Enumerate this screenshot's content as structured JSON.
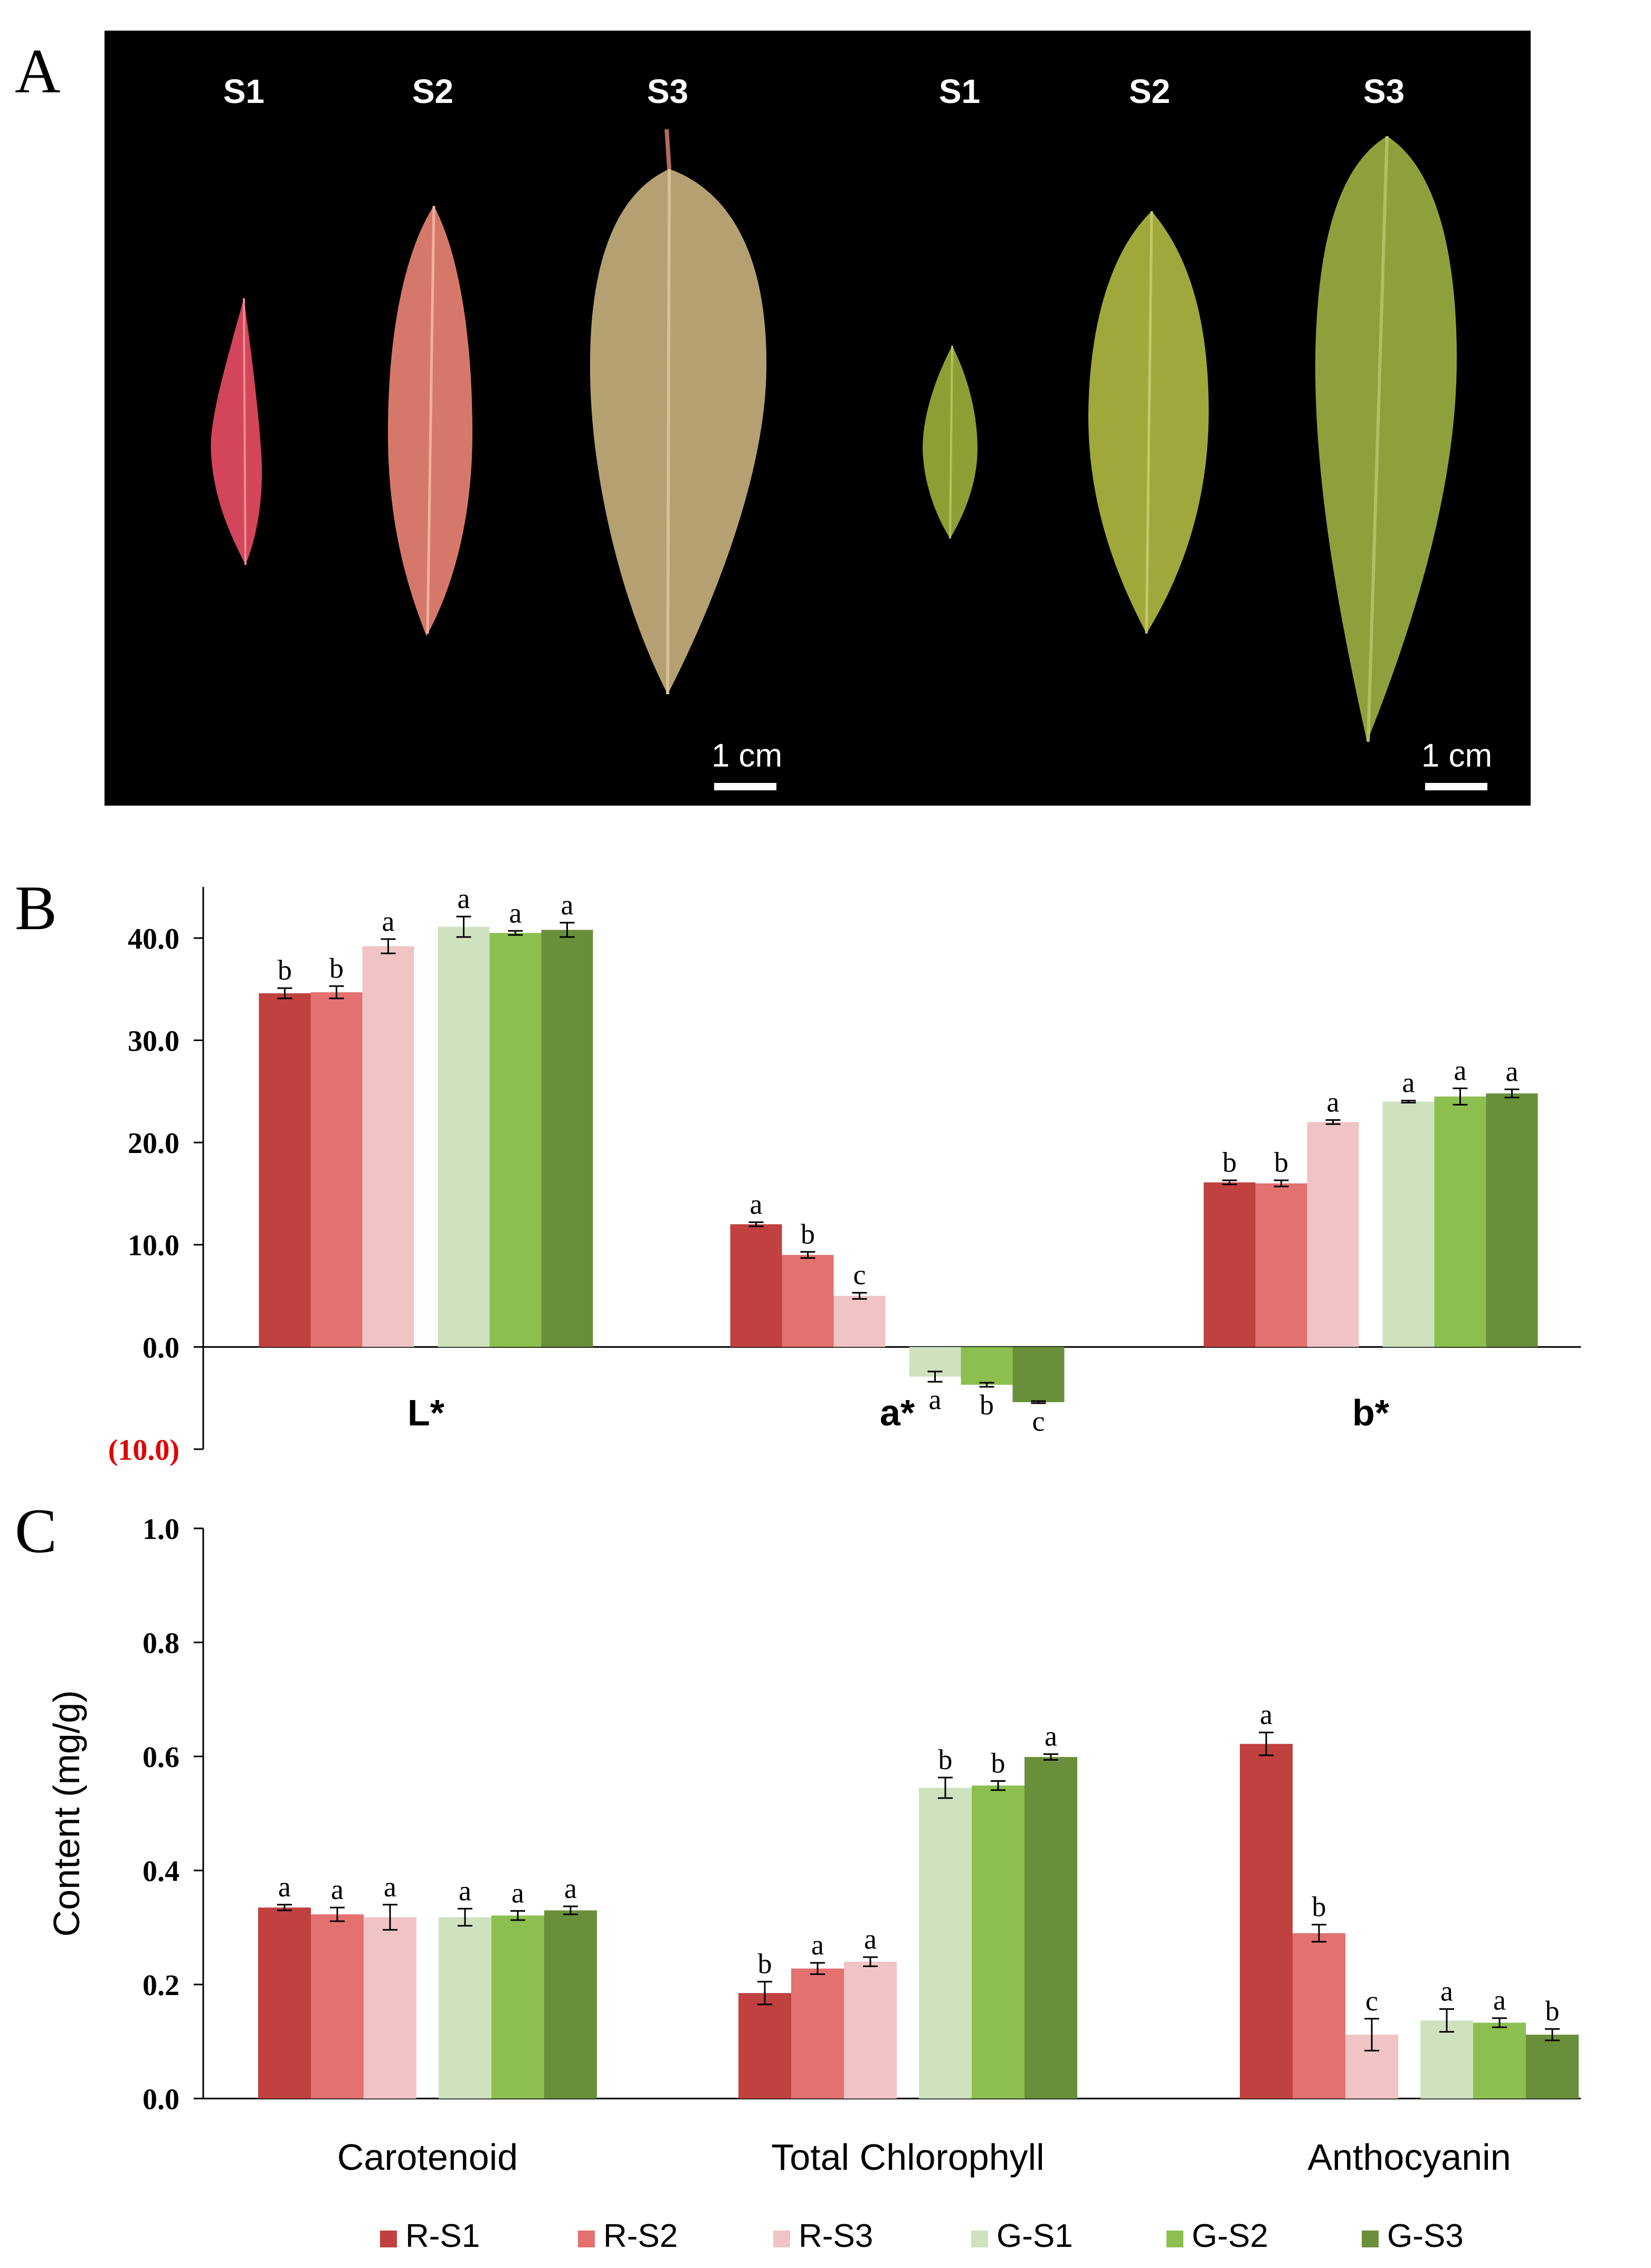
{
  "panels": {
    "A": {
      "label": "A"
    },
    "B": {
      "label": "B"
    },
    "C": {
      "label": "C"
    }
  },
  "photo": {
    "red_stage_labels": [
      "S1",
      "S2",
      "S3"
    ],
    "green_stage_labels": [
      "S1",
      "S2",
      "S3"
    ],
    "scale_bar_text": "1 cm"
  },
  "colors": {
    "R-S1": "#c0413f",
    "R-S2": "#e27170",
    "R-S3": "#f0c4c5",
    "G-S1": "#cfe2c0",
    "G-S2": "#8dbf50",
    "G-S3": "#6a8f3b",
    "photo_bg": "#000000",
    "negative_tick": "#e00000"
  },
  "legend": {
    "items": [
      "R-S1",
      "R-S2",
      "R-S3",
      "G-S1",
      "G-S2",
      "G-S3"
    ]
  },
  "chart_data": [
    {
      "type": "bar",
      "panel": "B",
      "categories": [
        "L*",
        "a*",
        "b*"
      ],
      "series": [
        {
          "name": "R-S1",
          "values": [
            34.6,
            12.0,
            16.1
          ],
          "errors": [
            0.5,
            0.2,
            0.2
          ],
          "letters": [
            "b",
            "a",
            "b"
          ]
        },
        {
          "name": "R-S2",
          "values": [
            34.7,
            9.0,
            16.0
          ],
          "errors": [
            0.6,
            0.3,
            0.3
          ],
          "letters": [
            "b",
            "b",
            "b"
          ]
        },
        {
          "name": "R-S3",
          "values": [
            39.2,
            5.0,
            22.0
          ],
          "errors": [
            0.7,
            0.3,
            0.2
          ],
          "letters": [
            "a",
            "c",
            "a"
          ]
        },
        {
          "name": "G-S1",
          "values": [
            41.1,
            -2.9,
            24.0
          ],
          "errors": [
            1.0,
            0.5,
            0.1
          ],
          "letters": [
            "a",
            "a",
            "a"
          ]
        },
        {
          "name": "G-S2",
          "values": [
            40.5,
            -3.7,
            24.5
          ],
          "errors": [
            0.2,
            0.2,
            0.8
          ],
          "letters": [
            "a",
            "b",
            "a"
          ]
        },
        {
          "name": "G-S3",
          "values": [
            40.8,
            -5.4,
            24.8
          ],
          "errors": [
            0.7,
            0.1,
            0.4
          ],
          "letters": [
            "a",
            "c",
            "a"
          ]
        }
      ],
      "yticks": [
        "40.0",
        "30.0",
        "20.0",
        "10.0",
        "0.0",
        "(10.0)"
      ],
      "ylim": [
        -10,
        45
      ],
      "ylabel": "",
      "grid": false
    },
    {
      "type": "bar",
      "panel": "C",
      "categories": [
        "Carotenoid",
        "Total Chlorophyll",
        "Anthocyanin"
      ],
      "series": [
        {
          "name": "R-S1",
          "values": [
            0.335,
            0.185,
            0.622
          ],
          "errors": [
            0.005,
            0.02,
            0.02
          ],
          "letters": [
            "a",
            "b",
            "a"
          ]
        },
        {
          "name": "R-S2",
          "values": [
            0.323,
            0.228,
            0.29
          ],
          "errors": [
            0.012,
            0.01,
            0.015
          ],
          "letters": [
            "a",
            "a",
            "b"
          ]
        },
        {
          "name": "R-S3",
          "values": [
            0.318,
            0.24,
            0.112
          ],
          "errors": [
            0.022,
            0.008,
            0.028
          ],
          "letters": [
            "a",
            "a",
            "c"
          ]
        },
        {
          "name": "G-S1",
          "values": [
            0.318,
            0.545,
            0.137
          ],
          "errors": [
            0.015,
            0.018,
            0.02
          ],
          "letters": [
            "a",
            "b",
            "a"
          ]
        },
        {
          "name": "G-S2",
          "values": [
            0.321,
            0.549,
            0.133
          ],
          "errors": [
            0.008,
            0.008,
            0.008
          ],
          "letters": [
            "a",
            "b",
            "a"
          ]
        },
        {
          "name": "G-S3",
          "values": [
            0.33,
            0.599,
            0.112
          ],
          "errors": [
            0.007,
            0.005,
            0.01
          ],
          "letters": [
            "a",
            "a",
            "b"
          ]
        }
      ],
      "yticks": [
        "1.0",
        "0.8",
        "0.6",
        "0.4",
        "0.2",
        "0.0"
      ],
      "ylim": [
        0,
        1.0
      ],
      "ylabel": "Content (mg/g)",
      "grid": false
    }
  ]
}
